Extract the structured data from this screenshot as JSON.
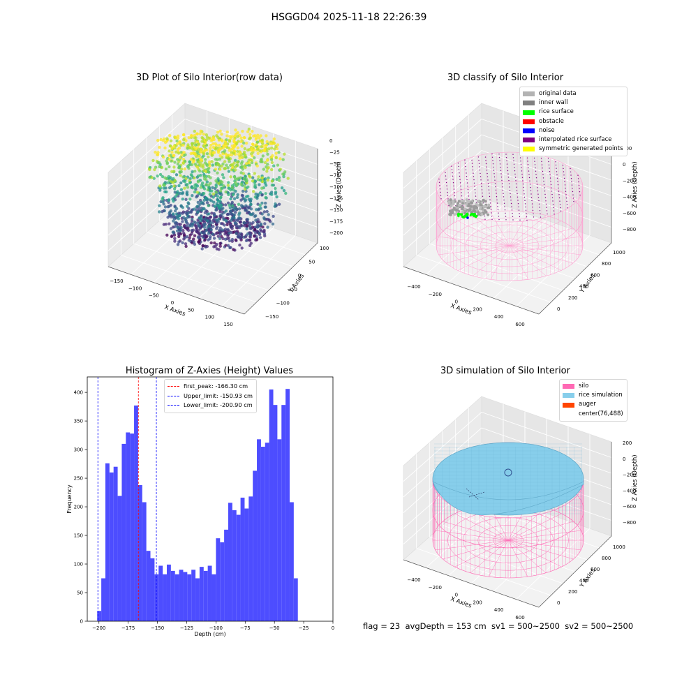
{
  "suptitle": "HSGGD04 2025-11-18 22:26:39",
  "panel_titles": {
    "raw": "3D Plot of Silo Interior(row data)",
    "classify": "3D classify of Silo Interior",
    "hist": "Histogram of Z-Axies (Height) Values",
    "sim": "3D simulation of Silo Interior"
  },
  "footer": "flag = 23  avgDepth = 153 cm  sv1 = 500~2500  sv2 = 500~2500",
  "colors": {
    "hist_bar": "#4d4dff",
    "peak_line": "#ff0000",
    "limit_line": "#0000ff",
    "silo": "#ff69b4",
    "rice": "#87ceeb",
    "auger": "#ff4500"
  },
  "classify_legend": [
    {
      "label": "original data",
      "color": "#b3b3b3"
    },
    {
      "label": "inner wall",
      "color": "#808080"
    },
    {
      "label": "rice surface",
      "color": "#00ff00"
    },
    {
      "label": "obstacle",
      "color": "#ff0000"
    },
    {
      "label": "noise",
      "color": "#0000ff"
    },
    {
      "label": "interpolated rice surface",
      "color": "#800080"
    },
    {
      "label": "symmetric generated points",
      "color": "#ffff00"
    }
  ],
  "sim_legend": [
    {
      "label": "silo",
      "color": "#ff69b4"
    },
    {
      "label": "rice simulation",
      "color": "#87ceeb"
    },
    {
      "label": "auger",
      "color": "#ff4500"
    },
    {
      "label": "center(76,488)",
      "color": ""
    }
  ],
  "chart_data": [
    {
      "type": "scatter",
      "title": "3D Plot of Silo Interior(row data)",
      "xlabel": "X Axies",
      "ylabel": "Y Axies",
      "zlabel": "Z Axies (Depth)",
      "x_ticks": [
        "−150",
        "−100",
        "−50",
        "0",
        "50",
        "100",
        "150"
      ],
      "y_ticks": [
        "−150",
        "−100",
        "−50",
        "0",
        "50",
        "100"
      ],
      "z_ticks": [
        "0",
        "−25",
        "−50",
        "−75",
        "−100",
        "−125",
        "−150",
        "−175",
        "−200"
      ],
      "colormap": "viridis"
    },
    {
      "type": "scatter",
      "title": "3D classify of Silo Interior",
      "xlabel": "X Axies",
      "ylabel": "Y Axies",
      "zlabel": "Z Axies (Depth)",
      "x_ticks": [
        "−400",
        "−200",
        "0",
        "200",
        "400",
        "600"
      ],
      "y_ticks": [
        "0",
        "200",
        "400",
        "600",
        "800",
        "1000"
      ],
      "z_ticks": [
        "200",
        "0",
        "−200",
        "−400",
        "−600",
        "−800"
      ]
    },
    {
      "type": "bar",
      "title": "Histogram of Z-Axies (Height) Values",
      "xlabel": "Depth (cm)",
      "ylabel": "Frequency",
      "xlim": [
        -210,
        0
      ],
      "ylim": [
        0,
        427
      ],
      "x_ticks": [
        -200,
        -175,
        -150,
        -125,
        -100,
        -75,
        -50,
        -25,
        0
      ],
      "y_ticks": [
        0,
        50,
        100,
        150,
        200,
        250,
        300,
        350,
        400
      ],
      "bin_start": -201.5,
      "bin_width": 3.5,
      "values": [
        18,
        75,
        276,
        260,
        270,
        219,
        310,
        330,
        328,
        377,
        238,
        208,
        123,
        110,
        82,
        97,
        82,
        99,
        88,
        82,
        90,
        86,
        82,
        90,
        75,
        95,
        88,
        97,
        82,
        145,
        138,
        160,
        207,
        194,
        186,
        216,
        197,
        218,
        263,
        318,
        305,
        312,
        405,
        378,
        318,
        378,
        406,
        208,
        75
      ],
      "series": [
        {
          "name": "Frequency",
          "values": []
        }
      ],
      "reference_lines": [
        {
          "label": "first_peak: -166.30 cm",
          "x": -166.3,
          "color": "#ff0000"
        },
        {
          "label": "Upper_limit: -150.93 cm",
          "x": -150.93,
          "color": "#0000ff"
        },
        {
          "label": "Lower_limit: -200.90 cm",
          "x": -200.9,
          "color": "#0000ff"
        }
      ],
      "legend_position": "top-center"
    },
    {
      "type": "scatter",
      "title": "3D simulation of Silo Interior",
      "xlabel": "X Axies",
      "ylabel": "Y Axies",
      "zlabel": "Z Axies (Depth)",
      "x_ticks": [
        "−400",
        "−200",
        "0",
        "200",
        "400",
        "600"
      ],
      "y_ticks": [
        "0",
        "200",
        "400",
        "600",
        "800",
        "1000"
      ],
      "z_ticks": [
        "200",
        "0",
        "−200",
        "−400",
        "−600",
        "−800"
      ]
    }
  ]
}
